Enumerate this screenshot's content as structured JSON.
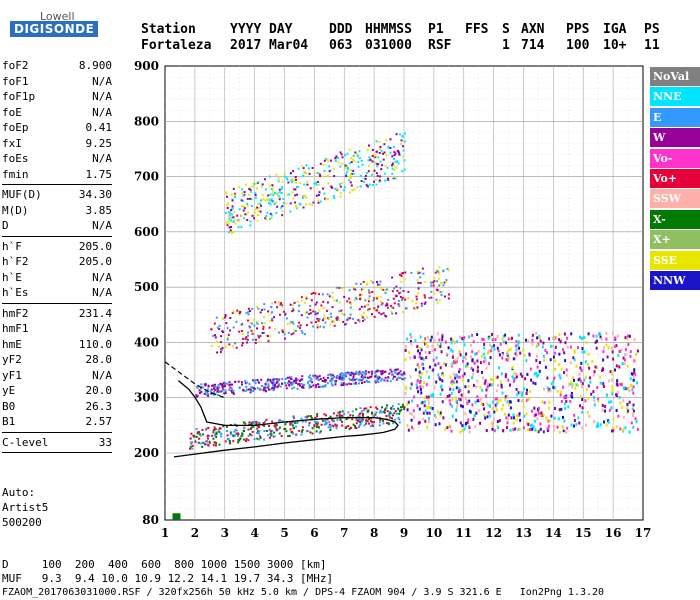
{
  "logo": {
    "top": "Lowell",
    "main": "DIGISONDE"
  },
  "header": {
    "row1": [
      "Station",
      "YYYY",
      "DAY",
      "DDD",
      "HHMMSS",
      "P1",
      "FFS",
      "S",
      "AXN",
      "PPS",
      "IGA",
      "PS"
    ],
    "row2": [
      "Fortaleza",
      "2017",
      "Mar04",
      "063",
      "031000",
      "RSF",
      "",
      "1",
      "714",
      "100",
      "10+",
      "11"
    ]
  },
  "params": [
    {
      "label": "foF2",
      "value": "8.900"
    },
    {
      "label": "foF1",
      "value": "N/A"
    },
    {
      "label": "foF1p",
      "value": "N/A"
    },
    {
      "label": "foE",
      "value": "N/A"
    },
    {
      "label": "foEp",
      "value": "0.41"
    },
    {
      "label": "fxI",
      "value": "9.25"
    },
    {
      "label": "foEs",
      "value": "N/A"
    },
    {
      "label": "fmin",
      "value": "1.75"
    },
    {
      "sep": true
    },
    {
      "label": "MUF(D)",
      "value": "34.30"
    },
    {
      "label": "M(D)",
      "value": "3.85"
    },
    {
      "label": "D",
      "value": "N/A"
    },
    {
      "sep": true
    },
    {
      "label": "h`F",
      "value": "205.0"
    },
    {
      "label": "h`F2",
      "value": "205.0"
    },
    {
      "label": "h`E",
      "value": "N/A"
    },
    {
      "label": "h`Es",
      "value": "N/A"
    },
    {
      "sep": true
    },
    {
      "label": "hmF2",
      "value": "231.4"
    },
    {
      "label": "hmF1",
      "value": "N/A"
    },
    {
      "label": "hmE",
      "value": "110.0"
    },
    {
      "label": "yF2",
      "value": "28.0"
    },
    {
      "label": "yF1",
      "value": "N/A"
    },
    {
      "label": "yE",
      "value": "20.0"
    },
    {
      "label": "B0",
      "value": "26.3"
    },
    {
      "label": "B1",
      "value": "2.57"
    },
    {
      "sep": true
    },
    {
      "label": "C-level",
      "value": "33"
    },
    {
      "sep": true
    }
  ],
  "autoscaling": {
    "line1": "Auto:",
    "line2": "Artist5",
    "line3": "500200"
  },
  "legend": [
    {
      "label": "NoVal",
      "color": "#808080"
    },
    {
      "label": "NNE",
      "color": "#00e5ff"
    },
    {
      "label": "E",
      "color": "#3399ff"
    },
    {
      "label": "W",
      "color": "#990099"
    },
    {
      "label": "Vo-",
      "color": "#ff33cc"
    },
    {
      "label": "Vo+",
      "color": "#e6003a"
    },
    {
      "label": "SSW",
      "color": "#ffb0a8"
    },
    {
      "label": "X-",
      "color": "#007a00"
    },
    {
      "label": "X+",
      "color": "#8fbf60"
    },
    {
      "label": "SSE",
      "color": "#e6e600"
    },
    {
      "label": "NNW",
      "color": "#1a14c8"
    }
  ],
  "bottom": {
    "d_row": "D     100  200  400  600  800 1000 1500 3000 [km]",
    "muf_row": "MUF   9.3  9.4 10.0 10.9 12.2 14.1 19.7 34.3 [MHz]",
    "footer": "FZAOM_2017063031000.RSF / 320fx256h 50 kHz 5.0 km / DPS-4 FZAOM 904 / 3.9 S 321.6 E   Ion2Png 1.3.20"
  },
  "chart_data": {
    "type": "scatter",
    "xlim": [
      1,
      17
    ],
    "ylim": [
      80,
      900
    ],
    "x_ticks": [
      1,
      2,
      3,
      4,
      5,
      6,
      7,
      8,
      9,
      10,
      11,
      12,
      13,
      14,
      15,
      16,
      17
    ],
    "y_ticks": [
      80,
      200,
      300,
      400,
      500,
      600,
      700,
      800,
      900
    ],
    "grid": true,
    "legend_position": "right",
    "profile_curve": {
      "x": [
        1.3,
        2,
        3,
        4,
        5,
        6,
        7,
        7.5,
        8,
        8.3,
        8.5,
        8.7,
        8.8,
        8.7,
        8.4,
        8,
        7,
        6,
        5,
        4,
        3,
        2.6,
        2.4,
        2.2,
        2.0,
        1.8,
        1.6,
        1.45
      ],
      "y": [
        193,
        198,
        205,
        211,
        218,
        224,
        230,
        232,
        235,
        237,
        240,
        243,
        250,
        256,
        261,
        264,
        264,
        261,
        256,
        250,
        250,
        254,
        256,
        283,
        301,
        315,
        324,
        331
      ]
    },
    "dashed_curve": {
      "x": [
        1.0,
        1.5,
        2.0,
        2.5,
        3.0
      ],
      "y": [
        365,
        345,
        325,
        310,
        300
      ]
    },
    "trace_bands": [
      {
        "name": "F-layer O trace",
        "x": [
          1.8,
          9.0
        ],
        "y": [
          220,
          300
        ],
        "colors": [
          "#e6003a",
          "#3399ff",
          "#007a00"
        ]
      },
      {
        "name": "F-layer X trace",
        "x": [
          2.0,
          9.0
        ],
        "y": [
          310,
          360
        ],
        "colors": [
          "#990099",
          "#3399ff"
        ]
      },
      {
        "name": "2nd hop",
        "x": [
          2.5,
          10.5
        ],
        "y": [
          400,
          560
        ],
        "colors": [
          "#e6003a",
          "#990099",
          "#e6e600",
          "#3399ff"
        ]
      },
      {
        "name": "3rd hop",
        "x": [
          3.0,
          9.0
        ],
        "y": [
          620,
          800
        ],
        "colors": [
          "#990099",
          "#e6e600",
          "#00e5ff"
        ]
      },
      {
        "name": "spread F",
        "x": [
          9.0,
          16.8
        ],
        "y": [
          240,
          420
        ],
        "colors": [
          "#1a14c8",
          "#00e5ff",
          "#e6e600",
          "#ffb0a8",
          "#990099",
          "#ff33cc"
        ]
      }
    ]
  }
}
